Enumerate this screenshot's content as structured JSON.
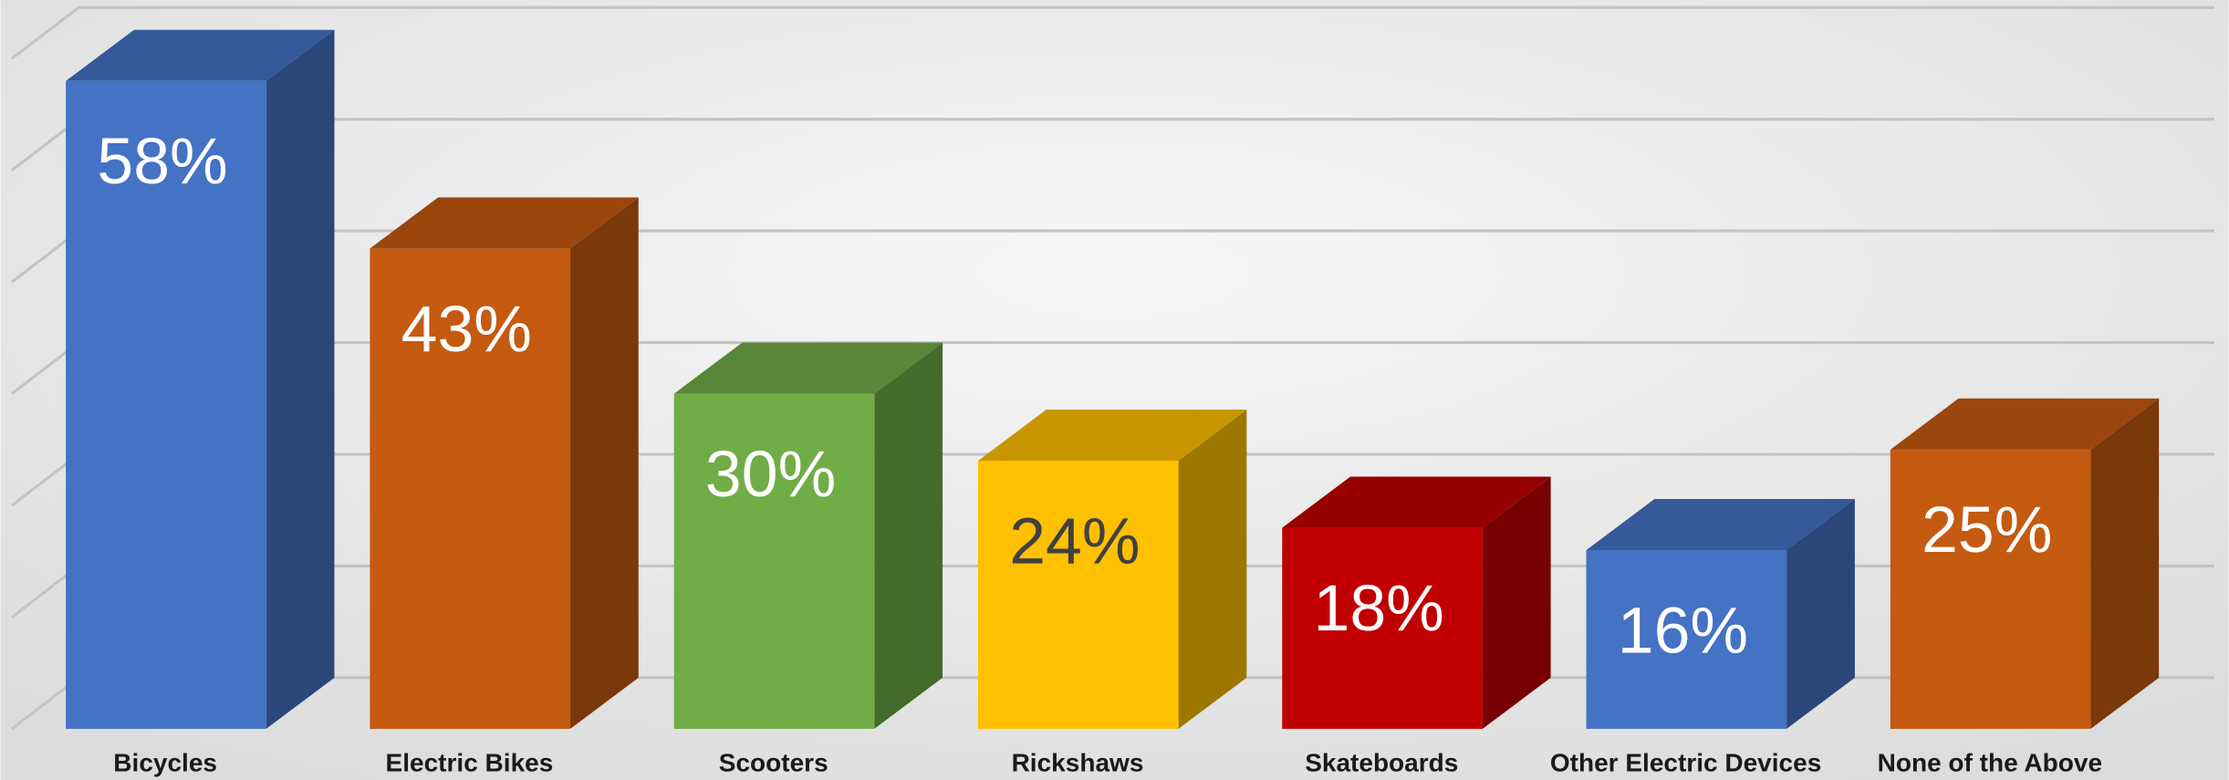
{
  "chart_data": {
    "type": "bar3d",
    "categories": [
      "Bicycles",
      "Electric Bikes",
      "Scooters",
      "Rickshaws",
      "Skateboards",
      "Other Electric Devices",
      "None of the Above"
    ],
    "values": [
      58,
      43,
      30,
      24,
      18,
      16,
      25
    ],
    "value_labels": [
      "58%",
      "43%",
      "30%",
      "24%",
      "18%",
      "16%",
      "25%"
    ],
    "colors": [
      "#4472c4",
      "#c55a11",
      "#70ad47",
      "#ffc000",
      "#c00000",
      "#4472c4",
      "#c55a11"
    ],
    "label_colors": [
      "#ffffff",
      "#ffffff",
      "#ffffff",
      "#404040",
      "#ffffff",
      "#ffffff",
      "#ffffff"
    ],
    "ylim": [
      0,
      60
    ],
    "yticks": [
      0,
      10,
      20,
      30,
      40,
      50,
      60
    ],
    "grid": true
  }
}
